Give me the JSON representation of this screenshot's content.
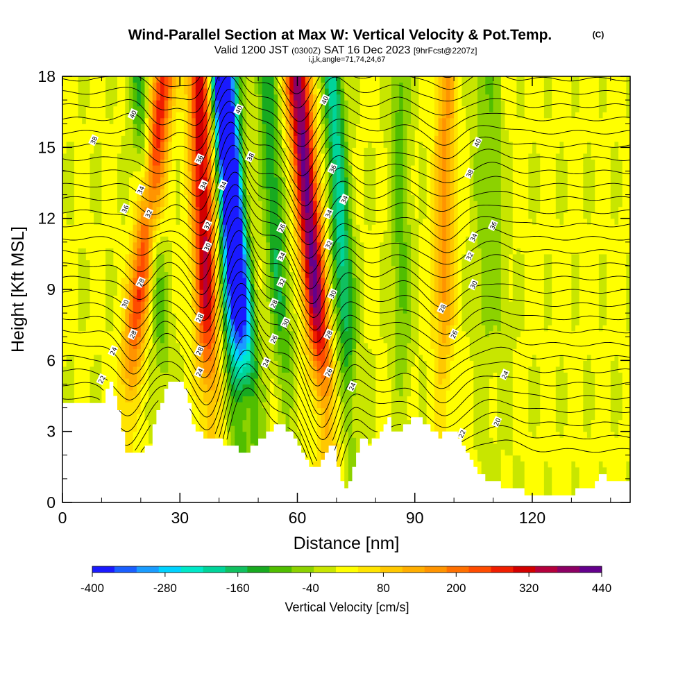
{
  "title": {
    "main": "Wind-Parallel Section at Max W: Vertical Velocity & Pot.Temp.",
    "copyright": "(C)",
    "line2_a": "Valid 1200 JST",
    "line2_b": "(0300Z)",
    "line2_c": "SAT 16 Dec 2023",
    "line2_d": "[9hrFcst@2207z]",
    "line3": "i,j,k,angle=71,74,24,67"
  },
  "chart_data": {
    "type": "heatmap",
    "xlabel": "Distance [nm]",
    "ylabel": "Height [Kft MSL]",
    "xlim": [
      0,
      145
    ],
    "ylim": [
      0,
      18
    ],
    "x_ticks": [
      "0",
      "30",
      "60",
      "90",
      "120"
    ],
    "y_ticks": [
      "0",
      "3",
      "6",
      "9",
      "12",
      "15",
      "18"
    ],
    "colorbar": {
      "label": "Vertical Velocity [cm/s]",
      "tick_labels": [
        "-400",
        "-280",
        "-160",
        "-40",
        "80",
        "200",
        "320",
        "440"
      ],
      "min": -400,
      "max": 440,
      "step": 40,
      "colors": [
        "#1a1aff",
        "#1a5fff",
        "#1a9cff",
        "#00d2ff",
        "#00e8c8",
        "#00d49a",
        "#10c060",
        "#18aa20",
        "#50be00",
        "#8cd200",
        "#c8e600",
        "#ffff00",
        "#ffe400",
        "#ffc800",
        "#ffae00",
        "#ff9400",
        "#ff7000",
        "#ff4c00",
        "#f01e00",
        "#d20000",
        "#b4003c",
        "#8c0064",
        "#64008c"
      ]
    },
    "updraft_axes": [
      {
        "x_base": 15,
        "x_top": 26,
        "w": 300
      },
      {
        "x_base": 38,
        "x_top": 35,
        "w": 360
      },
      {
        "x_base": 50,
        "x_top": 40,
        "w": -320
      },
      {
        "x_base": 68,
        "x_top": 60,
        "w": 440
      },
      {
        "x_base": 97,
        "x_top": 98,
        "w": 160
      },
      {
        "x_base": 114,
        "x_top": 110,
        "w": -60
      }
    ],
    "downdraft_axes": [
      {
        "x_base": 28,
        "x_top": 19,
        "w": -120
      },
      {
        "x_base": 45,
        "x_top": 42,
        "w": -360
      },
      {
        "x_base": 58,
        "x_top": 52,
        "w": -160
      },
      {
        "x_base": 74,
        "x_top": 69,
        "w": -220
      },
      {
        "x_base": 87,
        "x_top": 86,
        "w": -100
      },
      {
        "x_base": 108,
        "x_top": 107,
        "w": -60
      }
    ],
    "theta_contours": {
      "interval": 2,
      "levels_labeled": [
        "22",
        "24",
        "26",
        "28",
        "30",
        "32",
        "34",
        "36",
        "38",
        "40"
      ],
      "labels": [
        {
          "text": "40",
          "x": 18,
          "y": 16.4
        },
        {
          "text": "38",
          "x": 8,
          "y": 15.3
        },
        {
          "text": "40",
          "x": 45,
          "y": 16.6
        },
        {
          "text": "40",
          "x": 67,
          "y": 17.0
        },
        {
          "text": "40",
          "x": 106,
          "y": 15.2
        },
        {
          "text": "36",
          "x": 35,
          "y": 14.5
        },
        {
          "text": "38",
          "x": 48,
          "y": 14.6
        },
        {
          "text": "36",
          "x": 69,
          "y": 14.1
        },
        {
          "text": "38",
          "x": 104,
          "y": 13.9
        },
        {
          "text": "34",
          "x": 20,
          "y": 13.2
        },
        {
          "text": "36",
          "x": 16,
          "y": 12.4
        },
        {
          "text": "32",
          "x": 22,
          "y": 12.2
        },
        {
          "text": "34",
          "x": 36,
          "y": 13.4
        },
        {
          "text": "34",
          "x": 41,
          "y": 13.4
        },
        {
          "text": "34",
          "x": 72,
          "y": 12.8
        },
        {
          "text": "36",
          "x": 110,
          "y": 11.7
        },
        {
          "text": "34",
          "x": 68,
          "y": 12.2
        },
        {
          "text": "32",
          "x": 37,
          "y": 11.7
        },
        {
          "text": "26",
          "x": 56,
          "y": 11.6
        },
        {
          "text": "30",
          "x": 37,
          "y": 10.8
        },
        {
          "text": "32",
          "x": 68,
          "y": 10.9
        },
        {
          "text": "34",
          "x": 105,
          "y": 11.2
        },
        {
          "text": "34",
          "x": 56,
          "y": 10.4
        },
        {
          "text": "32",
          "x": 104,
          "y": 10.4
        },
        {
          "text": "28",
          "x": 20,
          "y": 9.3
        },
        {
          "text": "32",
          "x": 56,
          "y": 9.3
        },
        {
          "text": "30",
          "x": 105,
          "y": 9.2
        },
        {
          "text": "30",
          "x": 69,
          "y": 8.8
        },
        {
          "text": "30",
          "x": 16,
          "y": 8.4
        },
        {
          "text": "28",
          "x": 54,
          "y": 8.4
        },
        {
          "text": "28",
          "x": 97,
          "y": 8.2
        },
        {
          "text": "28",
          "x": 35,
          "y": 7.8
        },
        {
          "text": "30",
          "x": 57,
          "y": 7.6
        },
        {
          "text": "26",
          "x": 100,
          "y": 7.1
        },
        {
          "text": "28",
          "x": 18,
          "y": 7.1
        },
        {
          "text": "28",
          "x": 68,
          "y": 7.1
        },
        {
          "text": "26",
          "x": 54,
          "y": 6.9
        },
        {
          "text": "28",
          "x": 35,
          "y": 6.4
        },
        {
          "text": "24",
          "x": 13,
          "y": 6.4
        },
        {
          "text": "24",
          "x": 52,
          "y": 5.9
        },
        {
          "text": "26",
          "x": 68,
          "y": 5.5
        },
        {
          "text": "24",
          "x": 35,
          "y": 5.5
        },
        {
          "text": "24",
          "x": 113,
          "y": 5.4
        },
        {
          "text": "22",
          "x": 10,
          "y": 5.2
        },
        {
          "text": "24",
          "x": 74,
          "y": 4.9
        },
        {
          "text": "20",
          "x": 111,
          "y": 3.4
        },
        {
          "text": "22",
          "x": 102,
          "y": 2.9
        }
      ]
    }
  }
}
